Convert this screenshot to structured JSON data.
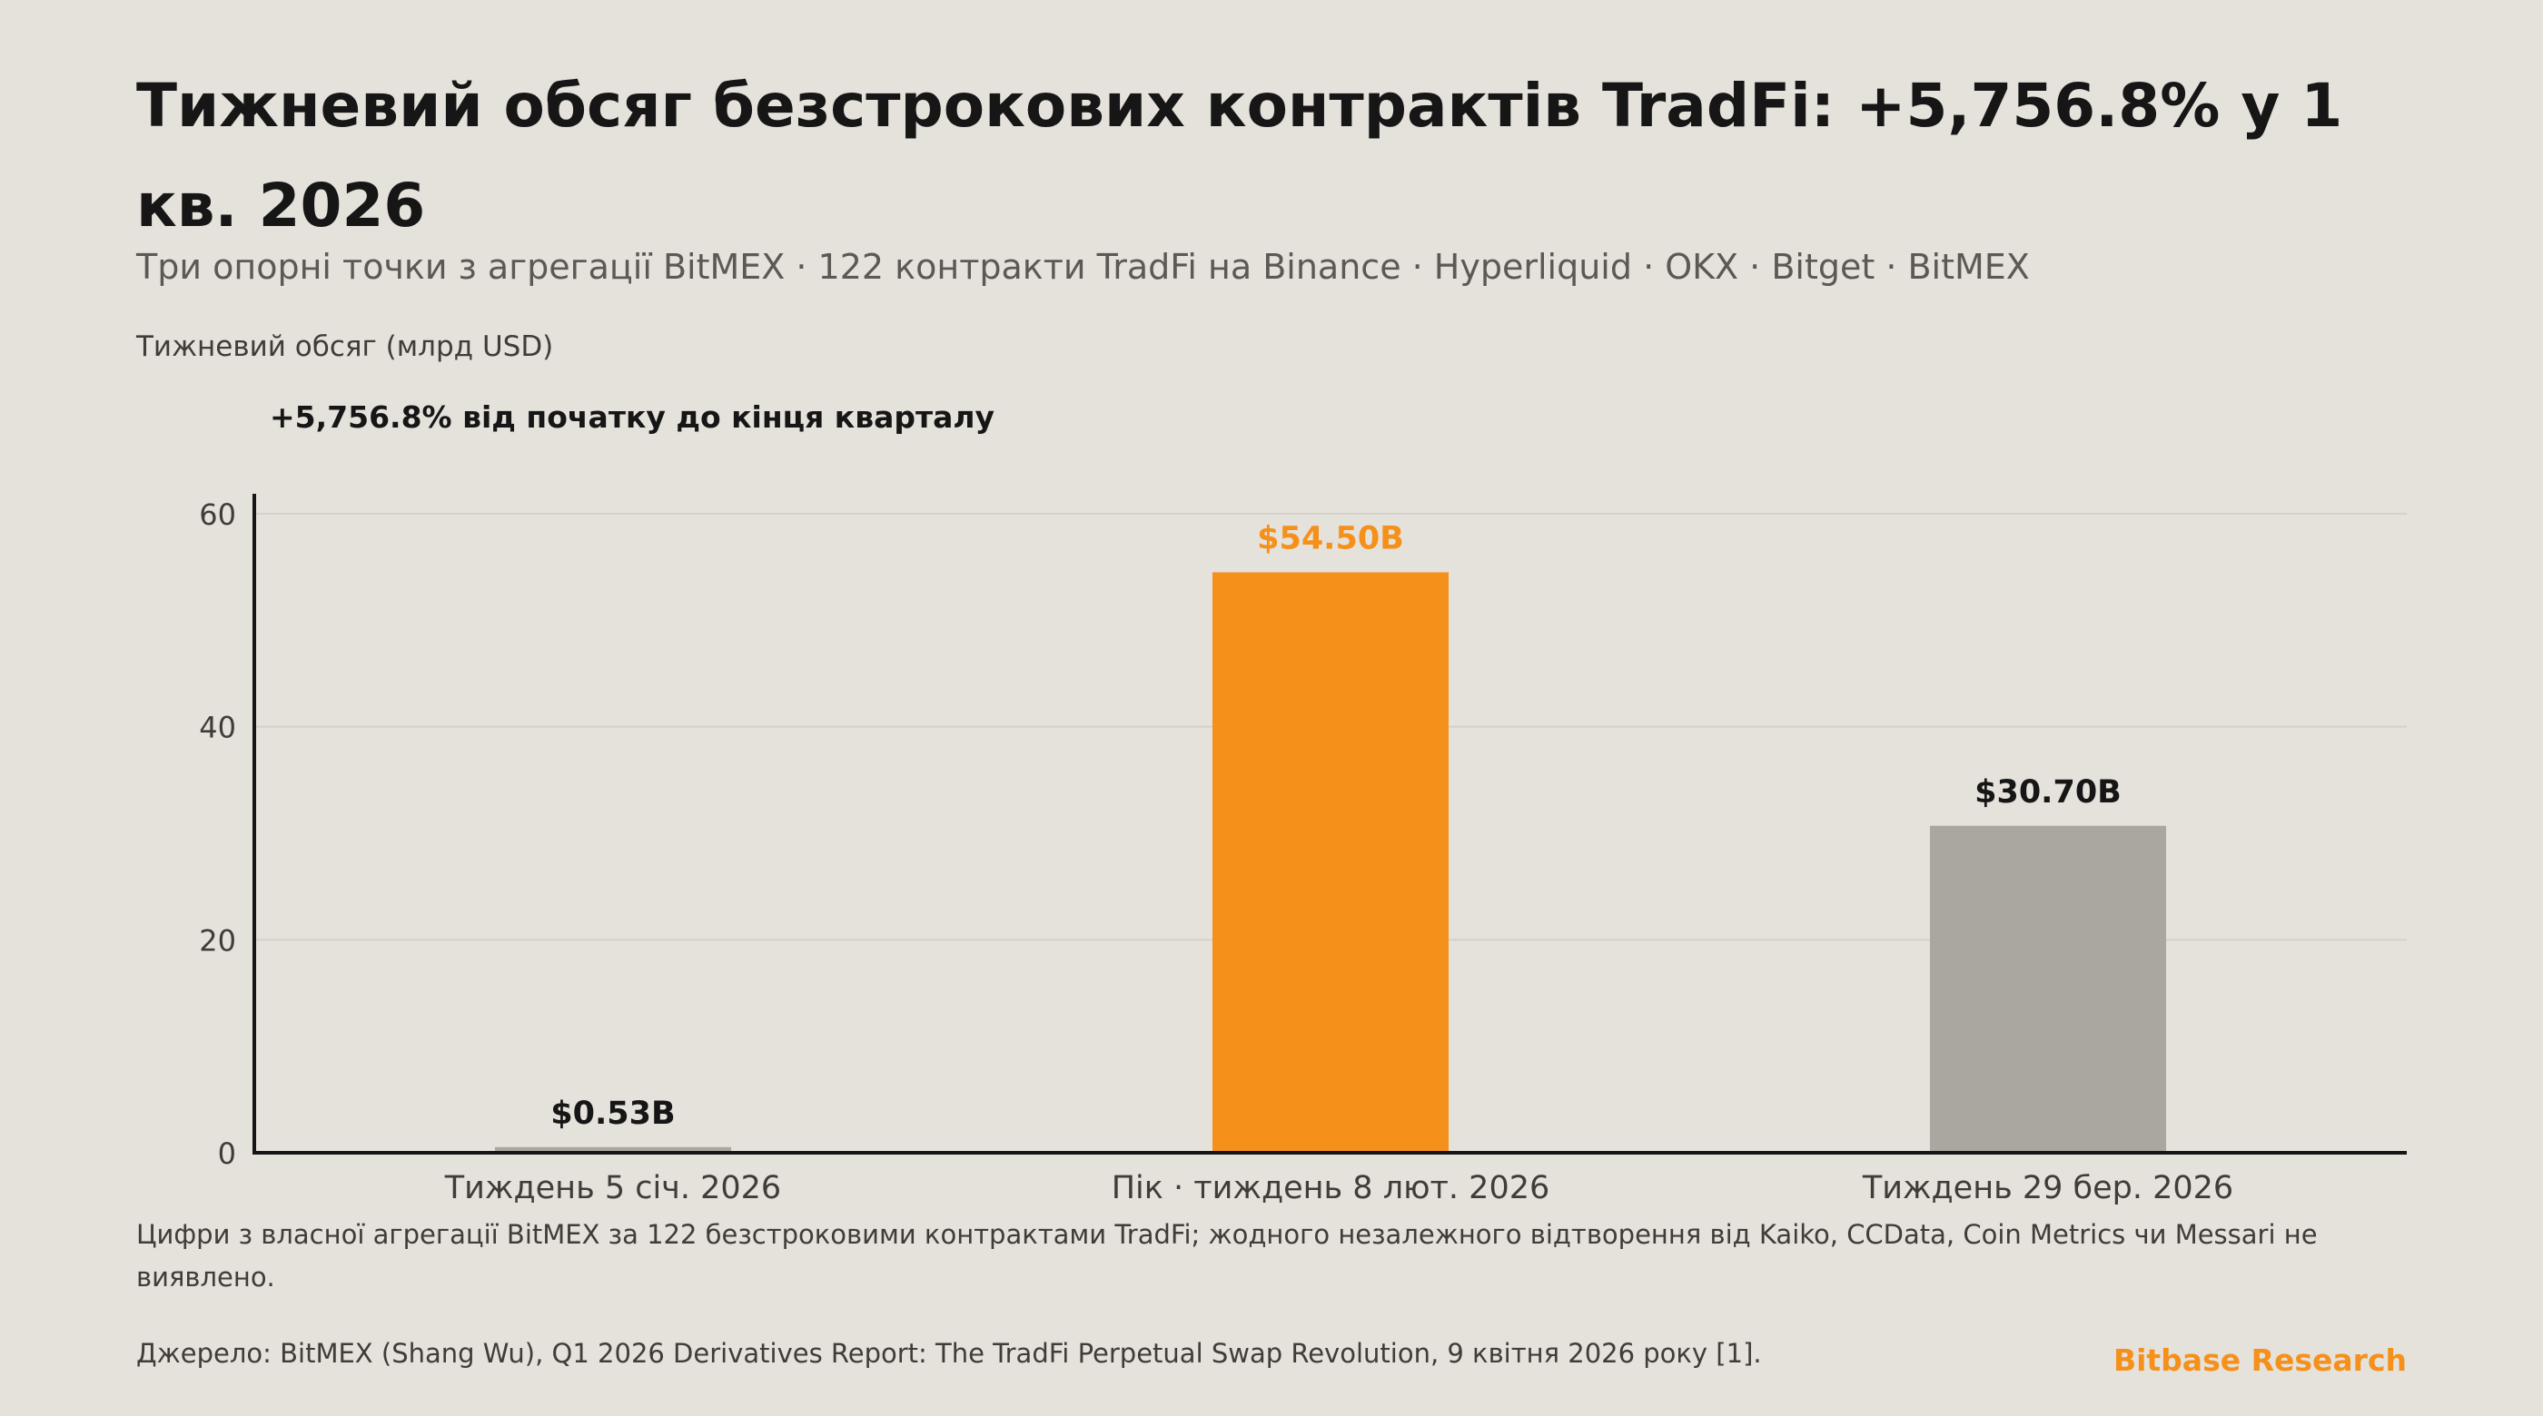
{
  "title": "Тижневий обсяг безстрокових контрактів TradFi: +5,756.8% у 1 кв. 2026",
  "subtitle": "Три опорні точки з агрегації BitMEX · 122 контракти TradFi на Binance · Hyperliquid · OKX · Bitget · BitMEX",
  "annotation": "+5,756.8% від початку до кінця кварталу",
  "note": "Цифри з власної агрегації BitMEX за 122 безстроковими контрактами TradFi; жодного незалежного відтворення від Kaiko, CCData, Coin Metrics чи Messari не виявлено.",
  "source": "Джерело: BitMEX (Shang Wu), Q1 2026 Derivatives Report: The TradFi Perpetual Swap Revolution, 9 квітня 2026 року [1].",
  "brand": "Bitbase Research",
  "colors": {
    "background": "#e5e1db",
    "accent": "#f5901a",
    "neutral_bar": "#aaa6a0",
    "axis": "#161616",
    "grid": "#d4d0ca"
  },
  "chart_data": {
    "type": "bar",
    "ylabel": "Тижневий обсяг (млрд USD)",
    "categories": [
      "Тиждень 5 січ. 2026",
      "Пік · тиждень 8 лют. 2026",
      "Тиждень 29 бер. 2026"
    ],
    "values": [
      0.53,
      54.5,
      30.7
    ],
    "data_labels": [
      "$0.53B",
      "$54.50B",
      "$30.70B"
    ],
    "highlight": [
      false,
      true,
      false
    ],
    "ylim": [
      0,
      60
    ],
    "yticks": [
      0,
      20,
      40,
      60
    ],
    "grid": true,
    "legend": "none"
  }
}
